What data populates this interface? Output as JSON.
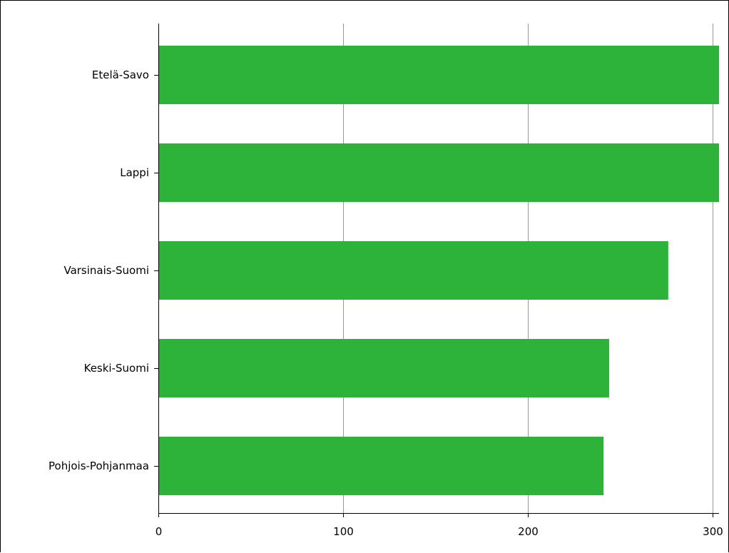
{
  "chart_data": {
    "type": "bar",
    "orientation": "horizontal",
    "categories": [
      "Etelä-Savo",
      "Lappi",
      "Varsinais-Suomi",
      "Keski-Suomi",
      "Pohjois-Pohjanmaa"
    ],
    "values": [
      305,
      304,
      276,
      244,
      241
    ],
    "title": "",
    "xlabel": "",
    "ylabel": "",
    "xlim": [
      0,
      300
    ],
    "xticks": [
      "0",
      "100",
      "200",
      "300"
    ],
    "grid": true,
    "bar_color": "#2db23a",
    "grid_color": "#999999"
  }
}
